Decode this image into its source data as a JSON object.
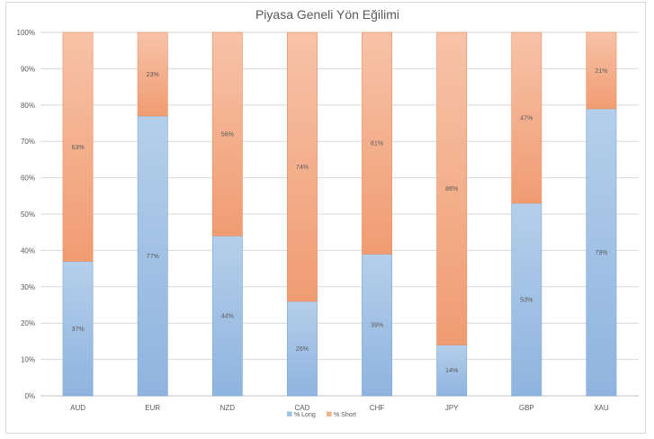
{
  "chart_data": {
    "type": "bar",
    "stacked": true,
    "title": "Piyasa Geneli Yön Eğilimi",
    "categories": [
      "AUD",
      "EUR",
      "NZD",
      "CAD",
      "CHF",
      "JPY",
      "GBP",
      "XAU"
    ],
    "series": [
      {
        "name": "% Long",
        "values": [
          37,
          77,
          44,
          26,
          39,
          14,
          53,
          79
        ],
        "labels": [
          "37%",
          "77%",
          "44%",
          "26%",
          "39%",
          "14%",
          "53%",
          "79%"
        ],
        "color": "#9dc3e6"
      },
      {
        "name": "% Short",
        "values": [
          63,
          23,
          56,
          74,
          61,
          86,
          47,
          21
        ],
        "labels": [
          "63%",
          "23%",
          "56%",
          "74%",
          "61%",
          "86%",
          "47%",
          "21%"
        ],
        "color": "#f4b183"
      }
    ],
    "ylim": [
      0,
      100
    ],
    "yticks": [
      "0%",
      "10%",
      "20%",
      "30%",
      "40%",
      "50%",
      "60%",
      "70%",
      "80%",
      "90%",
      "100%"
    ],
    "grid": true,
    "legend_position": "bottom"
  }
}
